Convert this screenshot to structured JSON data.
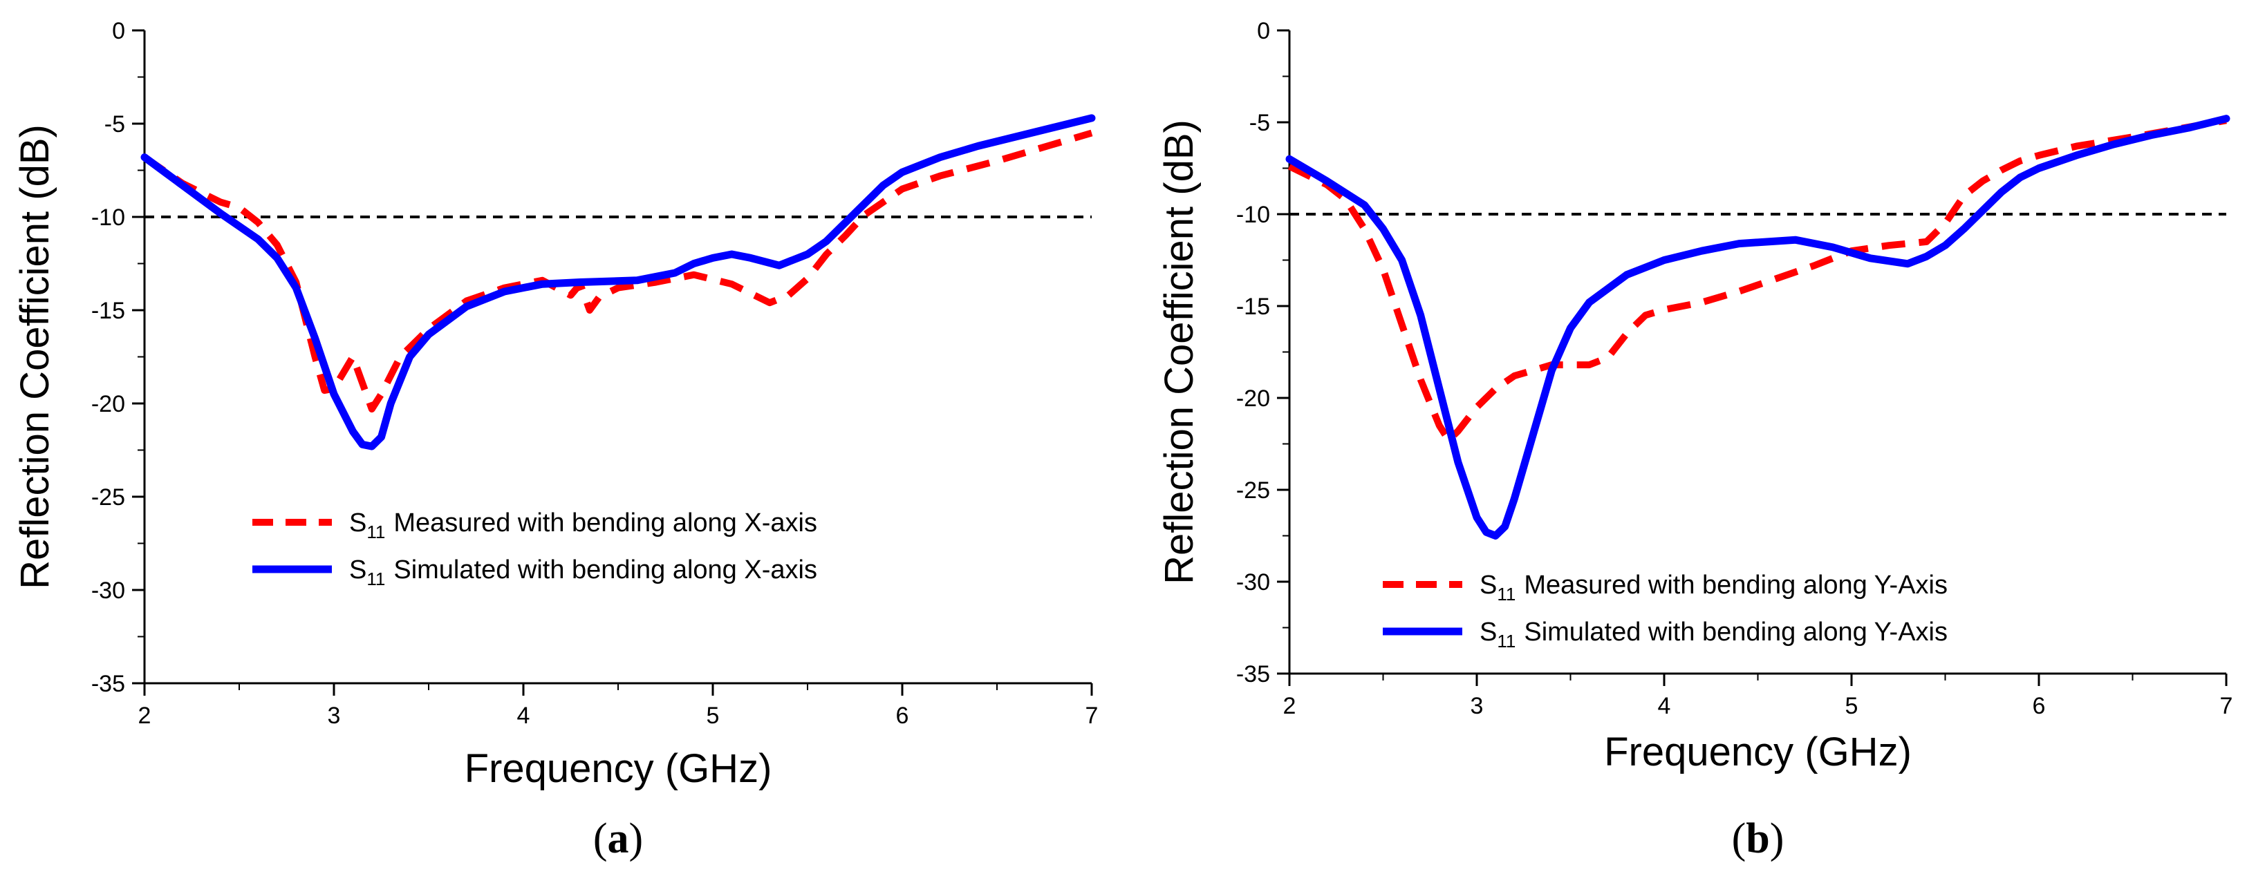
{
  "chart_data": [
    {
      "type": "line",
      "panel_label": "(a)",
      "xlabel": "Frequency (GHz)",
      "ylabel": "Reflection Coefficient (dB)",
      "xlim": [
        2,
        7
      ],
      "ylim": [
        -35,
        0
      ],
      "xticks": [
        2,
        3,
        4,
        5,
        6,
        7
      ],
      "yticks": [
        0,
        -5,
        -10,
        -15,
        -20,
        -25,
        -30,
        -35
      ],
      "reference_line": {
        "y": -10,
        "style": "dashed",
        "color": "#000000"
      },
      "series": [
        {
          "name": "S11 Measured with bending along X-axis",
          "legend_prefix": "S",
          "legend_sub": "11",
          "legend_text": "Measured with bending along X-axis",
          "style": "dashed",
          "color": "#ff0000",
          "x": [
            2.0,
            2.2,
            2.4,
            2.5,
            2.6,
            2.7,
            2.8,
            2.9,
            2.95,
            3.0,
            3.1,
            3.2,
            3.25,
            3.35,
            3.5,
            3.7,
            3.9,
            4.1,
            4.25,
            4.3,
            4.35,
            4.4,
            4.5,
            4.7,
            4.9,
            5.1,
            5.3,
            5.4,
            5.5,
            5.6,
            5.7,
            5.8,
            5.9,
            6.0,
            6.2,
            6.5,
            7.0
          ],
          "y": [
            -6.8,
            -8.2,
            -9.2,
            -9.5,
            -10.3,
            -11.5,
            -13.5,
            -17.5,
            -19.3,
            -19.2,
            -17.5,
            -20.3,
            -19.5,
            -17.5,
            -16.0,
            -14.5,
            -13.8,
            -13.4,
            -14.2,
            -13.6,
            -15.0,
            -14.3,
            -13.8,
            -13.5,
            -13.1,
            -13.6,
            -14.6,
            -14.2,
            -13.3,
            -12.0,
            -11.0,
            -9.9,
            -9.2,
            -8.5,
            -7.8,
            -7.0,
            -5.5
          ]
        },
        {
          "name": "S11 Simulated with bending along X-axis",
          "legend_prefix": "S",
          "legend_sub": "11",
          "legend_text": "Simulated with bending along X-axis",
          "style": "solid",
          "color": "#0000ff",
          "x": [
            2.0,
            2.2,
            2.4,
            2.6,
            2.7,
            2.8,
            2.9,
            3.0,
            3.1,
            3.15,
            3.2,
            3.25,
            3.3,
            3.4,
            3.5,
            3.7,
            3.9,
            4.1,
            4.3,
            4.6,
            4.8,
            4.9,
            5.0,
            5.1,
            5.2,
            5.35,
            5.5,
            5.6,
            5.7,
            5.8,
            5.9,
            6.0,
            6.2,
            6.4,
            6.6,
            6.8,
            7.0
          ],
          "y": [
            -6.8,
            -8.3,
            -9.8,
            -11.2,
            -12.2,
            -13.8,
            -16.5,
            -19.5,
            -21.5,
            -22.2,
            -22.3,
            -21.8,
            -20.0,
            -17.5,
            -16.3,
            -14.8,
            -14.0,
            -13.6,
            -13.5,
            -13.4,
            -13.0,
            -12.5,
            -12.2,
            -12.0,
            -12.2,
            -12.6,
            -12.0,
            -11.3,
            -10.3,
            -9.3,
            -8.3,
            -7.6,
            -6.8,
            -6.2,
            -5.7,
            -5.2,
            -4.7
          ]
        }
      ]
    },
    {
      "type": "line",
      "panel_label": "(b)",
      "xlabel": "Frequency (GHz)",
      "ylabel": "Reflection Coefficient (dB)",
      "xlim": [
        2,
        7
      ],
      "ylim": [
        -35,
        0
      ],
      "xticks": [
        2,
        3,
        4,
        5,
        6,
        7
      ],
      "yticks": [
        0,
        -5,
        -10,
        -15,
        -20,
        -25,
        -30,
        -35
      ],
      "reference_line": {
        "y": -10,
        "style": "dashed",
        "color": "#000000"
      },
      "series": [
        {
          "name": "S11 Measured with bending along Y-Axis",
          "legend_prefix": "S",
          "legend_sub": "11",
          "legend_text": "Measured with bending along Y-Axis",
          "style": "dashed",
          "color": "#ff0000",
          "x": [
            2.0,
            2.2,
            2.3,
            2.4,
            2.5,
            2.6,
            2.7,
            2.8,
            2.85,
            2.9,
            3.0,
            3.1,
            3.2,
            3.3,
            3.4,
            3.5,
            3.6,
            3.7,
            3.8,
            3.9,
            4.0,
            4.2,
            4.4,
            4.6,
            4.8,
            5.0,
            5.2,
            5.4,
            5.5,
            5.6,
            5.7,
            5.8,
            5.9,
            6.0,
            6.2,
            6.5,
            7.0
          ],
          "y": [
            -7.4,
            -8.4,
            -9.2,
            -10.8,
            -13.0,
            -16.0,
            -19.0,
            -21.5,
            -22.3,
            -21.8,
            -20.5,
            -19.5,
            -18.8,
            -18.5,
            -18.2,
            -18.2,
            -18.2,
            -17.8,
            -16.5,
            -15.5,
            -15.2,
            -14.8,
            -14.2,
            -13.5,
            -12.8,
            -12.0,
            -11.7,
            -11.5,
            -10.5,
            -9.0,
            -8.2,
            -7.6,
            -7.1,
            -6.8,
            -6.3,
            -5.8,
            -4.9
          ]
        },
        {
          "name": "S11 Simulated with bending along Y-Axis",
          "legend_prefix": "S",
          "legend_sub": "11",
          "legend_text": "Simulated with bending along Y-Axis",
          "style": "solid",
          "color": "#0000ff",
          "x": [
            2.0,
            2.2,
            2.4,
            2.5,
            2.6,
            2.7,
            2.8,
            2.9,
            3.0,
            3.05,
            3.1,
            3.15,
            3.2,
            3.3,
            3.4,
            3.5,
            3.6,
            3.8,
            4.0,
            4.2,
            4.4,
            4.7,
            4.9,
            5.1,
            5.3,
            5.4,
            5.5,
            5.6,
            5.7,
            5.8,
            5.9,
            6.0,
            6.2,
            6.4,
            6.6,
            6.8,
            7.0
          ],
          "y": [
            -7.0,
            -8.2,
            -9.5,
            -10.8,
            -12.5,
            -15.5,
            -19.5,
            -23.5,
            -26.5,
            -27.3,
            -27.5,
            -27.0,
            -25.5,
            -22.0,
            -18.5,
            -16.2,
            -14.8,
            -13.3,
            -12.5,
            -12.0,
            -11.6,
            -11.4,
            -11.8,
            -12.4,
            -12.7,
            -12.3,
            -11.7,
            -10.8,
            -9.8,
            -8.8,
            -8.0,
            -7.5,
            -6.8,
            -6.2,
            -5.7,
            -5.3,
            -4.8
          ]
        }
      ]
    }
  ]
}
